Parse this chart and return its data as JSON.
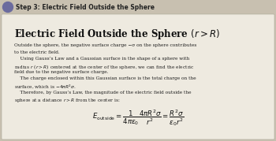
{
  "step_label": "Step 3: Electric Field Outside the Sphere",
  "step_circle_color": "#6b6b9e",
  "bg_color": "#c8c0b0",
  "card_color": "#eeeae0",
  "title_plain": "Electric Field Outside the Sphere ",
  "title_math": "$(r > R)$",
  "body_lines": [
    "Outside the sphere, the negative surface charge −σ on the sphere contributes",
    "to the electric field.",
    "    Using Gauss’s Law and a Gaussian surface in the shape of a sphere with",
    "radius $r$ ($r > R$) centered at the center of the sphere, we can find the electric",
    "field due to the negative surface charge.",
    "    The charge enclosed within this Gaussian surface is the total charge on the",
    "surface, which is $-4\\pi R^2\\sigma$.",
    "    Therefore, by Gauss’s Law, the magnitude of the electric field outside the",
    "sphere at a distance $r > R$ from the center is:"
  ],
  "formula": "$E_{\\mathrm{outside}} = \\dfrac{1}{4\\pi\\varepsilon_0}\\dfrac{4\\pi R^2\\sigma}{r^2} = \\dfrac{R^2\\sigma}{\\varepsilon_0 r^2}$"
}
